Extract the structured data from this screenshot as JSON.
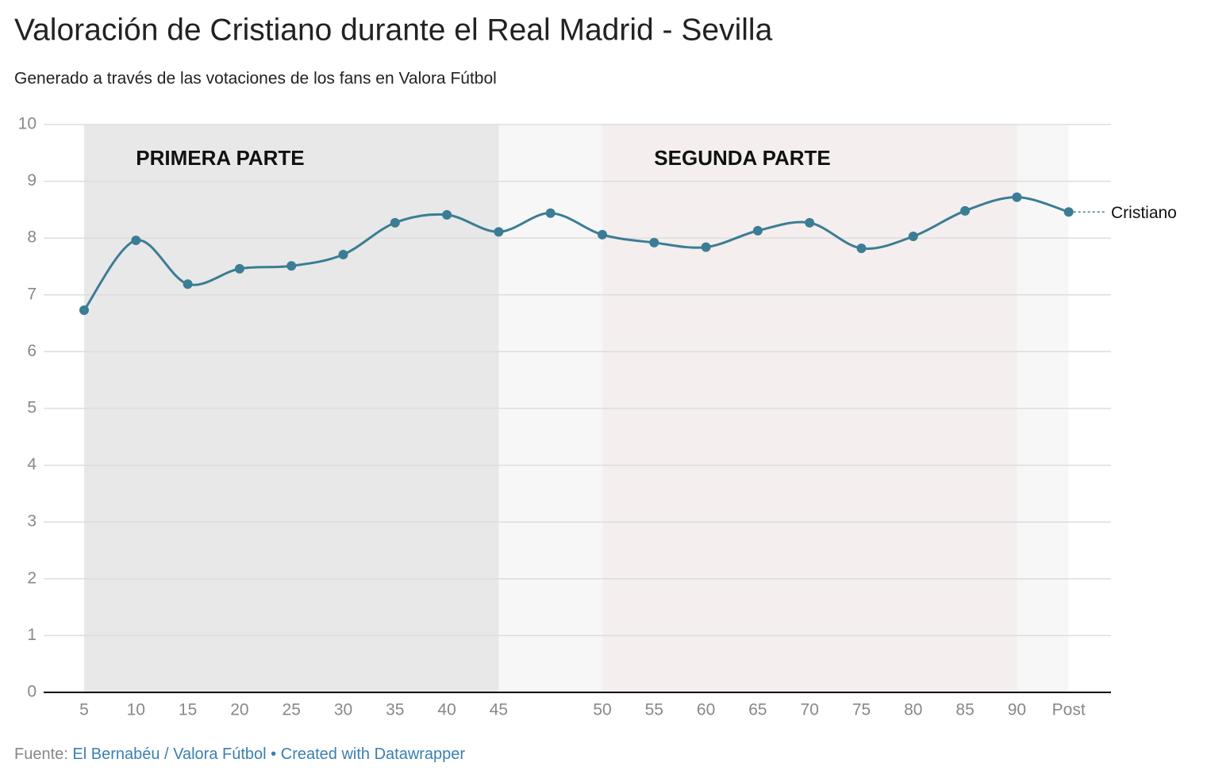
{
  "chart_data": {
    "type": "line",
    "title": "Valoración de Cristiano durante el Real Madrid - Sevilla",
    "subtitle": "Generado a través de las votaciones de los fans en Valora Fútbol",
    "categories": [
      "5",
      "10",
      "15",
      "20",
      "25",
      "30",
      "35",
      "40",
      "45",
      null,
      "50",
      "55",
      "60",
      "65",
      "70",
      "75",
      "80",
      "85",
      "90",
      "Post"
    ],
    "series": [
      {
        "name": "Cristiano",
        "color": "#3b7d94",
        "values": [
          6.73,
          7.96,
          7.19,
          7.46,
          7.51,
          7.71,
          8.27,
          8.41,
          8.11,
          8.44,
          8.06,
          7.92,
          7.84,
          8.13,
          8.27,
          7.82,
          8.03,
          8.48,
          8.72,
          8.46
        ]
      }
    ],
    "ylim": [
      0,
      10
    ],
    "yticks": [
      0,
      1,
      2,
      3,
      4,
      5,
      6,
      7,
      8,
      9,
      10
    ],
    "grid": true,
    "ranges": [
      {
        "from": "45",
        "to": "Post",
        "color": "#f7f7f7"
      },
      {
        "label": "PRIMERA PARTE",
        "from": "5",
        "to": "45",
        "color": "#e8e8e8"
      },
      {
        "label": "SEGUNDA PARTE",
        "from": "50",
        "to": "90",
        "color": "#f4eeee"
      }
    ]
  },
  "footer": {
    "source_label": "Fuente:",
    "source": "El Bernabéu / Valora Fútbol",
    "separator": "•",
    "credit": "Created with Datawrapper"
  }
}
